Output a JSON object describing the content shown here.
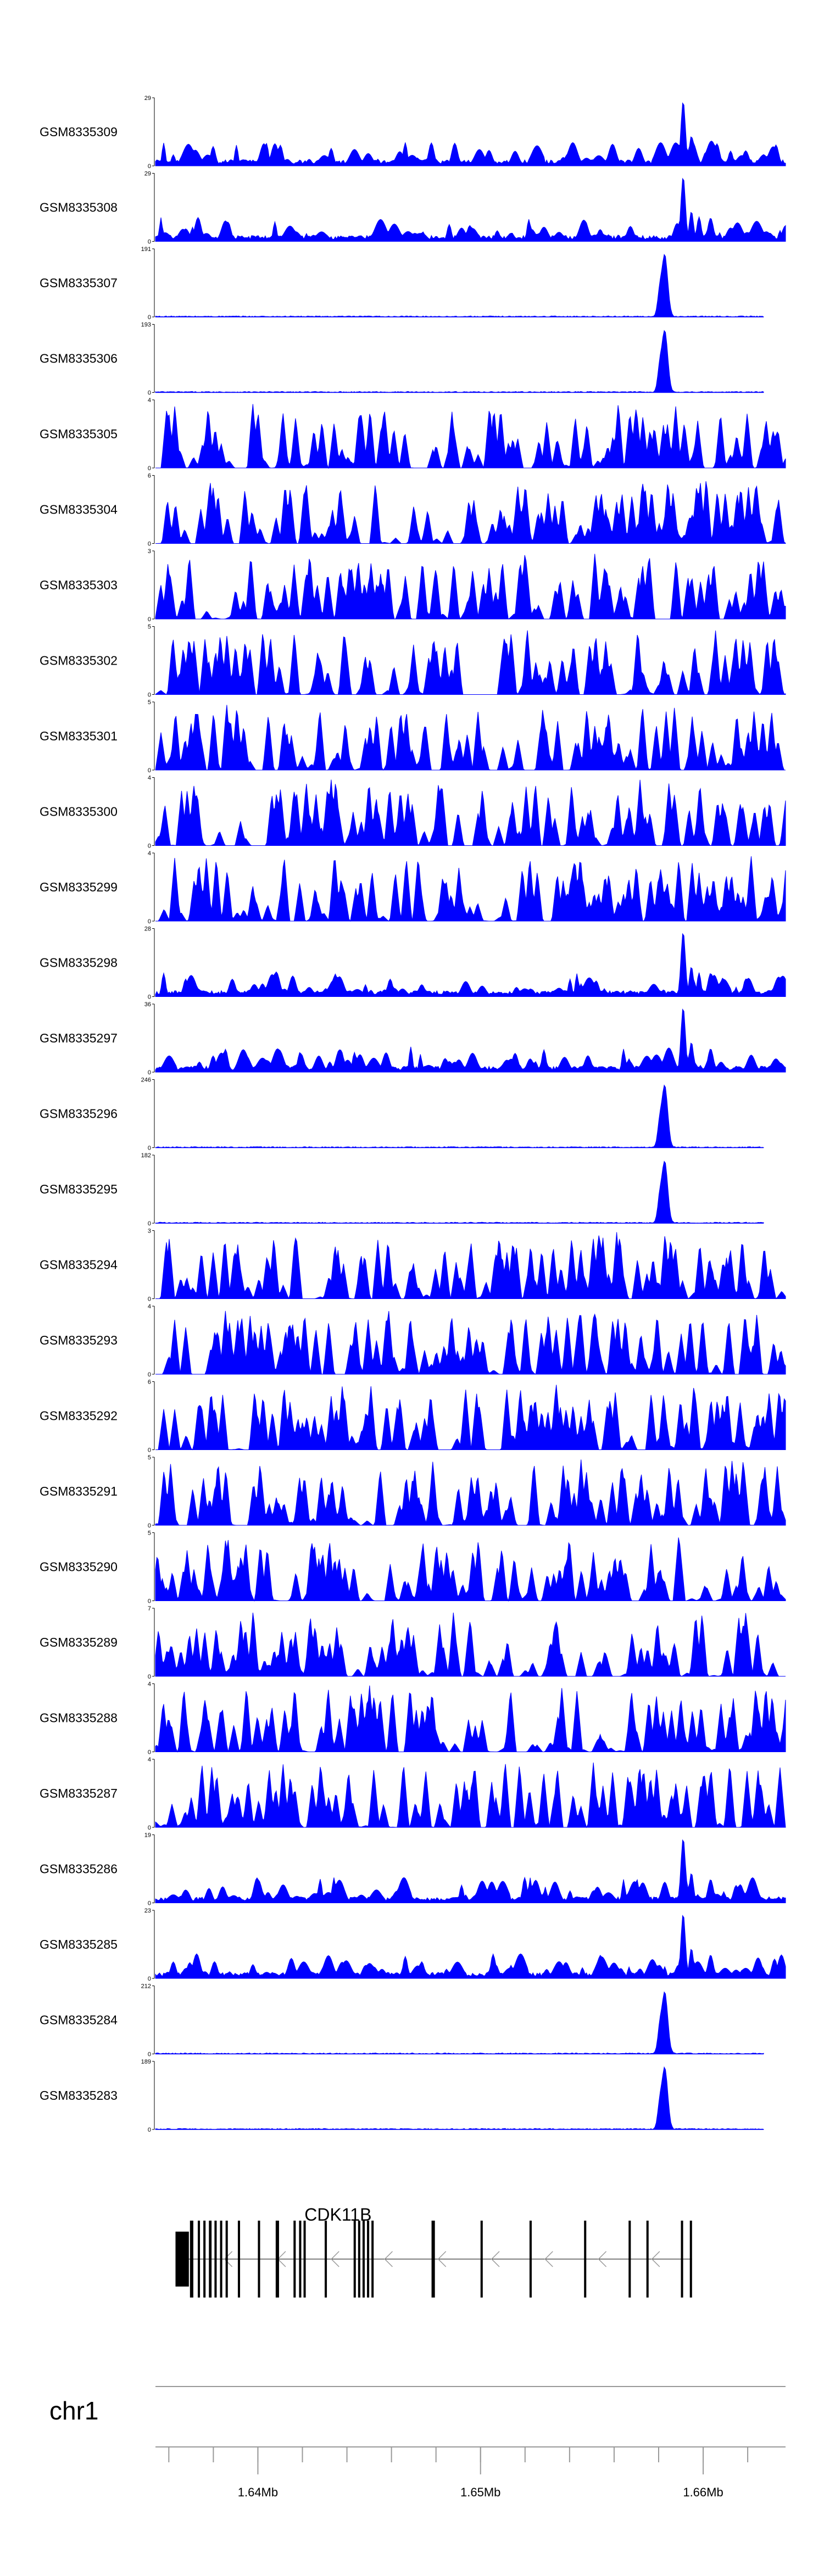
{
  "chart_data": {
    "type": "area",
    "color": "#0000ff",
    "x_range": [
      1635400,
      1663700
    ],
    "samples": [
      {
        "name": "GSM8335309",
        "ymax": "29",
        "shape": "bg1"
      },
      {
        "name": "GSM8335308",
        "ymax": "29",
        "shape": "bg2"
      },
      {
        "name": "GSM8335307",
        "ymax": "191",
        "shape": "peak"
      },
      {
        "name": "GSM8335306",
        "ymax": "193",
        "shape": "peak"
      },
      {
        "name": "GSM8335305",
        "ymax": "4",
        "shape": "sp1"
      },
      {
        "name": "GSM8335304",
        "ymax": "6",
        "shape": "sp2"
      },
      {
        "name": "GSM8335303",
        "ymax": "3",
        "shape": "sp3"
      },
      {
        "name": "GSM8335302",
        "ymax": "5",
        "shape": "sp1"
      },
      {
        "name": "GSM8335301",
        "ymax": "5",
        "shape": "sp2"
      },
      {
        "name": "GSM8335300",
        "ymax": "4",
        "shape": "sp3"
      },
      {
        "name": "GSM8335299",
        "ymax": "4",
        "shape": "sp1"
      },
      {
        "name": "GSM8335298",
        "ymax": "28",
        "shape": "bg1"
      },
      {
        "name": "GSM8335297",
        "ymax": "36",
        "shape": "bg2"
      },
      {
        "name": "GSM8335296",
        "ymax": "246",
        "shape": "peak"
      },
      {
        "name": "GSM8335295",
        "ymax": "182",
        "shape": "peak"
      },
      {
        "name": "GSM8335294",
        "ymax": "3",
        "shape": "sp2"
      },
      {
        "name": "GSM8335293",
        "ymax": "4",
        "shape": "sp3"
      },
      {
        "name": "GSM8335292",
        "ymax": "6",
        "shape": "sp1"
      },
      {
        "name": "GSM8335291",
        "ymax": "5",
        "shape": "sp2"
      },
      {
        "name": "GSM8335290",
        "ymax": "5",
        "shape": "sp3"
      },
      {
        "name": "GSM8335289",
        "ymax": "7",
        "shape": "sp1"
      },
      {
        "name": "GSM8335288",
        "ymax": "4",
        "shape": "sp2"
      },
      {
        "name": "GSM8335287",
        "ymax": "4",
        "shape": "sp3"
      },
      {
        "name": "GSM8335286",
        "ymax": "19",
        "shape": "bg1"
      },
      {
        "name": "GSM8335285",
        "ymax": "23",
        "shape": "bg2"
      },
      {
        "name": "GSM8335284",
        "ymax": "212",
        "shape": "peak"
      },
      {
        "name": "GSM8335283",
        "ymax": "189",
        "shape": "peak"
      }
    ],
    "gene": {
      "name": "CDK11B",
      "strand": "-",
      "exons": [
        [
          1636300,
          1636900
        ],
        [
          1636950,
          1637100
        ],
        [
          1637300,
          1637400
        ],
        [
          1637550,
          1637650
        ],
        [
          1637800,
          1637920
        ],
        [
          1638050,
          1638150
        ],
        [
          1638300,
          1638400
        ],
        [
          1638550,
          1638650
        ],
        [
          1639100,
          1639200
        ],
        [
          1640000,
          1640100
        ],
        [
          1640800,
          1640950
        ],
        [
          1641600,
          1641700
        ],
        [
          1641850,
          1641950
        ],
        [
          1642050,
          1642150
        ],
        [
          1643000,
          1643100
        ],
        [
          1644300,
          1644400
        ],
        [
          1644500,
          1644600
        ],
        [
          1644700,
          1644800
        ],
        [
          1644900,
          1645000
        ],
        [
          1645100,
          1645200
        ],
        [
          1647800,
          1647950
        ],
        [
          1650000,
          1650100
        ],
        [
          1652200,
          1652300
        ],
        [
          1654650,
          1654750
        ],
        [
          1656650,
          1656750
        ],
        [
          1657450,
          1657550
        ],
        [
          1659000,
          1659100
        ],
        [
          1659400,
          1659500
        ]
      ],
      "cds_range": [
        1636850,
        1659500
      ]
    },
    "chromosome": "chr1",
    "x_ticks": [
      1640000,
      1650000,
      1660000
    ],
    "x_tick_labels": [
      "1.64Mb",
      "1.65Mb",
      "1.66Mb"
    ],
    "minor_tick_step": 2000
  }
}
